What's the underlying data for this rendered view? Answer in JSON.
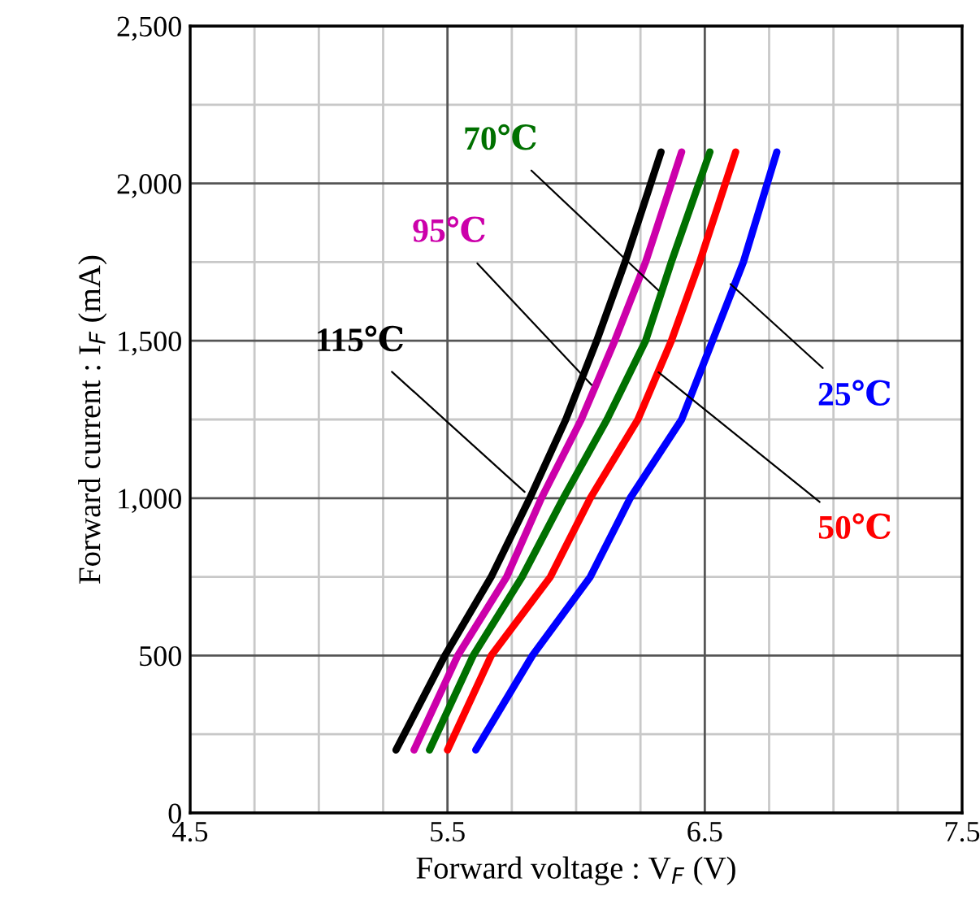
{
  "chart_data": {
    "type": "line",
    "xlabel": "Forward voltage : V$_{F}$ (V)",
    "ylabel": "Forward current : I$_{F}$ (mA)",
    "xlim": [
      4.5,
      7.5
    ],
    "xticks": [
      4.5,
      5.5,
      6.5,
      7.5
    ],
    "ylim": [
      0,
      2500
    ],
    "yticks": [
      {
        "value": 0,
        "label": "0"
      },
      {
        "value": 500,
        "label": "500"
      },
      {
        "value": 1000,
        "label": "1,000"
      },
      {
        "value": 1500,
        "label": "1,500"
      },
      {
        "value": 2000,
        "label": "2,000"
      },
      {
        "value": 2500,
        "label": "2,500"
      }
    ],
    "grid": true,
    "legend": false,
    "marker": "none",
    "line_style": "solid",
    "series": [
      {
        "color": "#0000ff",
        "x": [
          5.61,
          5.83,
          6.055,
          6.21,
          6.41,
          6.53,
          6.65,
          6.78
        ],
        "values": [
          200,
          500,
          750,
          1000,
          1250,
          1500,
          1750,
          2100
        ]
      },
      {
        "color": "#ff0000",
        "x": [
          5.5,
          5.67,
          5.9,
          6.055,
          6.24,
          6.37,
          6.48,
          6.62
        ],
        "values": [
          200,
          500,
          750,
          1000,
          1250,
          1500,
          1750,
          2100
        ]
      },
      {
        "color": "#007000",
        "x": [
          5.43,
          5.6,
          5.79,
          5.95,
          6.12,
          6.27,
          6.37,
          6.52
        ],
        "values": [
          200,
          500,
          750,
          1000,
          1250,
          1500,
          1750,
          2100
        ]
      },
      {
        "color": "#cc00aa",
        "x": [
          5.37,
          5.54,
          5.73,
          5.865,
          6.02,
          6.15,
          6.27,
          6.41
        ],
        "values": [
          200,
          500,
          750,
          1000,
          1250,
          1500,
          1750,
          2100
        ]
      },
      {
        "color": "#000000",
        "x": [
          5.3,
          5.49,
          5.67,
          5.82,
          5.96,
          6.08,
          6.19,
          6.33
        ],
        "values": [
          200,
          500,
          750,
          1000,
          1250,
          1500,
          1750,
          2100
        ]
      }
    ],
    "annotations": [
      {
        "text": "25℃",
        "x": 6.6,
        "y": 1680
      },
      {
        "text": "50℃",
        "x": 6.32,
        "y": 1400
      },
      {
        "text": "70℃",
        "x": 6.32,
        "y": 1660
      },
      {
        "text": "95℃",
        "x": 6.06,
        "y": 1360
      },
      {
        "text": "115℃",
        "x": 5.8,
        "y": 1020
      }
    ]
  }
}
